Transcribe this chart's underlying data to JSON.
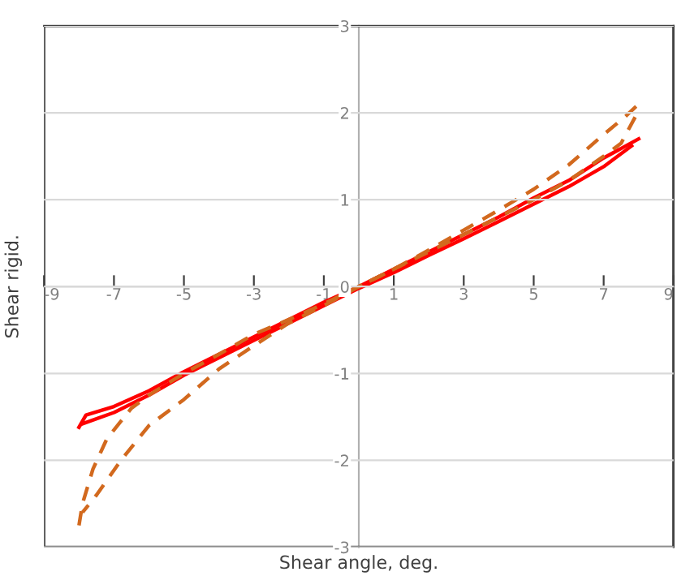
{
  "chart_data": {
    "type": "line",
    "xlabel": "Shear angle, deg.",
    "ylabel": "Shear rigid.",
    "xlim": [
      -9,
      9
    ],
    "ylim": [
      -3,
      3
    ],
    "xticks": [
      -9,
      -7,
      -5,
      -3,
      -1,
      1,
      3,
      5,
      7,
      9
    ],
    "yticks": [
      -3,
      -2,
      -1,
      0,
      1,
      2,
      3
    ],
    "grid": "y",
    "series": [
      {
        "color": "#ff0000",
        "line_style": "solid",
        "x": [
          -8,
          -7.8,
          -7,
          -6,
          -5,
          -4,
          -3,
          -2,
          -1,
          0,
          1,
          2,
          3,
          4,
          5,
          6,
          7,
          8
        ],
        "values": [
          -1.62,
          -1.48,
          -1.38,
          -1.2,
          -0.98,
          -0.78,
          -0.58,
          -0.38,
          -0.18,
          0,
          0.2,
          0.4,
          0.6,
          0.8,
          1.02,
          1.22,
          1.48,
          1.7
        ]
      },
      {
        "color": "#ff0000",
        "line_style": "solid",
        "x": [
          7.8,
          7,
          6,
          5,
          4,
          3,
          2,
          1,
          0,
          -1,
          -2,
          -3,
          -4,
          -5,
          -6,
          -7,
          -7.9
        ],
        "values": [
          1.62,
          1.38,
          1.15,
          0.95,
          0.75,
          0.55,
          0.36,
          0.16,
          -0.02,
          -0.22,
          -0.42,
          -0.62,
          -0.82,
          -1.02,
          -1.25,
          -1.45,
          -1.58
        ]
      },
      {
        "color": "#d2691e",
        "line_style": "dashed",
        "x": [
          -8,
          -7.9,
          -7.6,
          -7.2,
          -6.5,
          -6,
          -5,
          -4,
          -3,
          -2,
          -1,
          0,
          1,
          2,
          3,
          4,
          5,
          6,
          7,
          7.6,
          8
        ],
        "values": [
          -2.75,
          -2.5,
          -2.1,
          -1.75,
          -1.4,
          -1.25,
          -1.0,
          -0.78,
          -0.55,
          -0.38,
          -0.2,
          0,
          0.2,
          0.42,
          0.65,
          0.88,
          1.12,
          1.4,
          1.75,
          1.95,
          2.1
        ]
      },
      {
        "color": "#d2691e",
        "line_style": "dashed",
        "x": [
          7.9,
          7.5,
          7,
          6,
          5,
          4,
          3,
          2,
          1,
          0,
          -1,
          -2,
          -3,
          -4,
          -5,
          -6,
          -6.8,
          -7.5,
          -7.9
        ],
        "values": [
          1.95,
          1.65,
          1.5,
          1.22,
          1.0,
          0.8,
          0.6,
          0.4,
          0.2,
          0,
          -0.22,
          -0.42,
          -0.68,
          -0.95,
          -1.3,
          -1.6,
          -2.0,
          -2.4,
          -2.6
        ]
      }
    ]
  }
}
